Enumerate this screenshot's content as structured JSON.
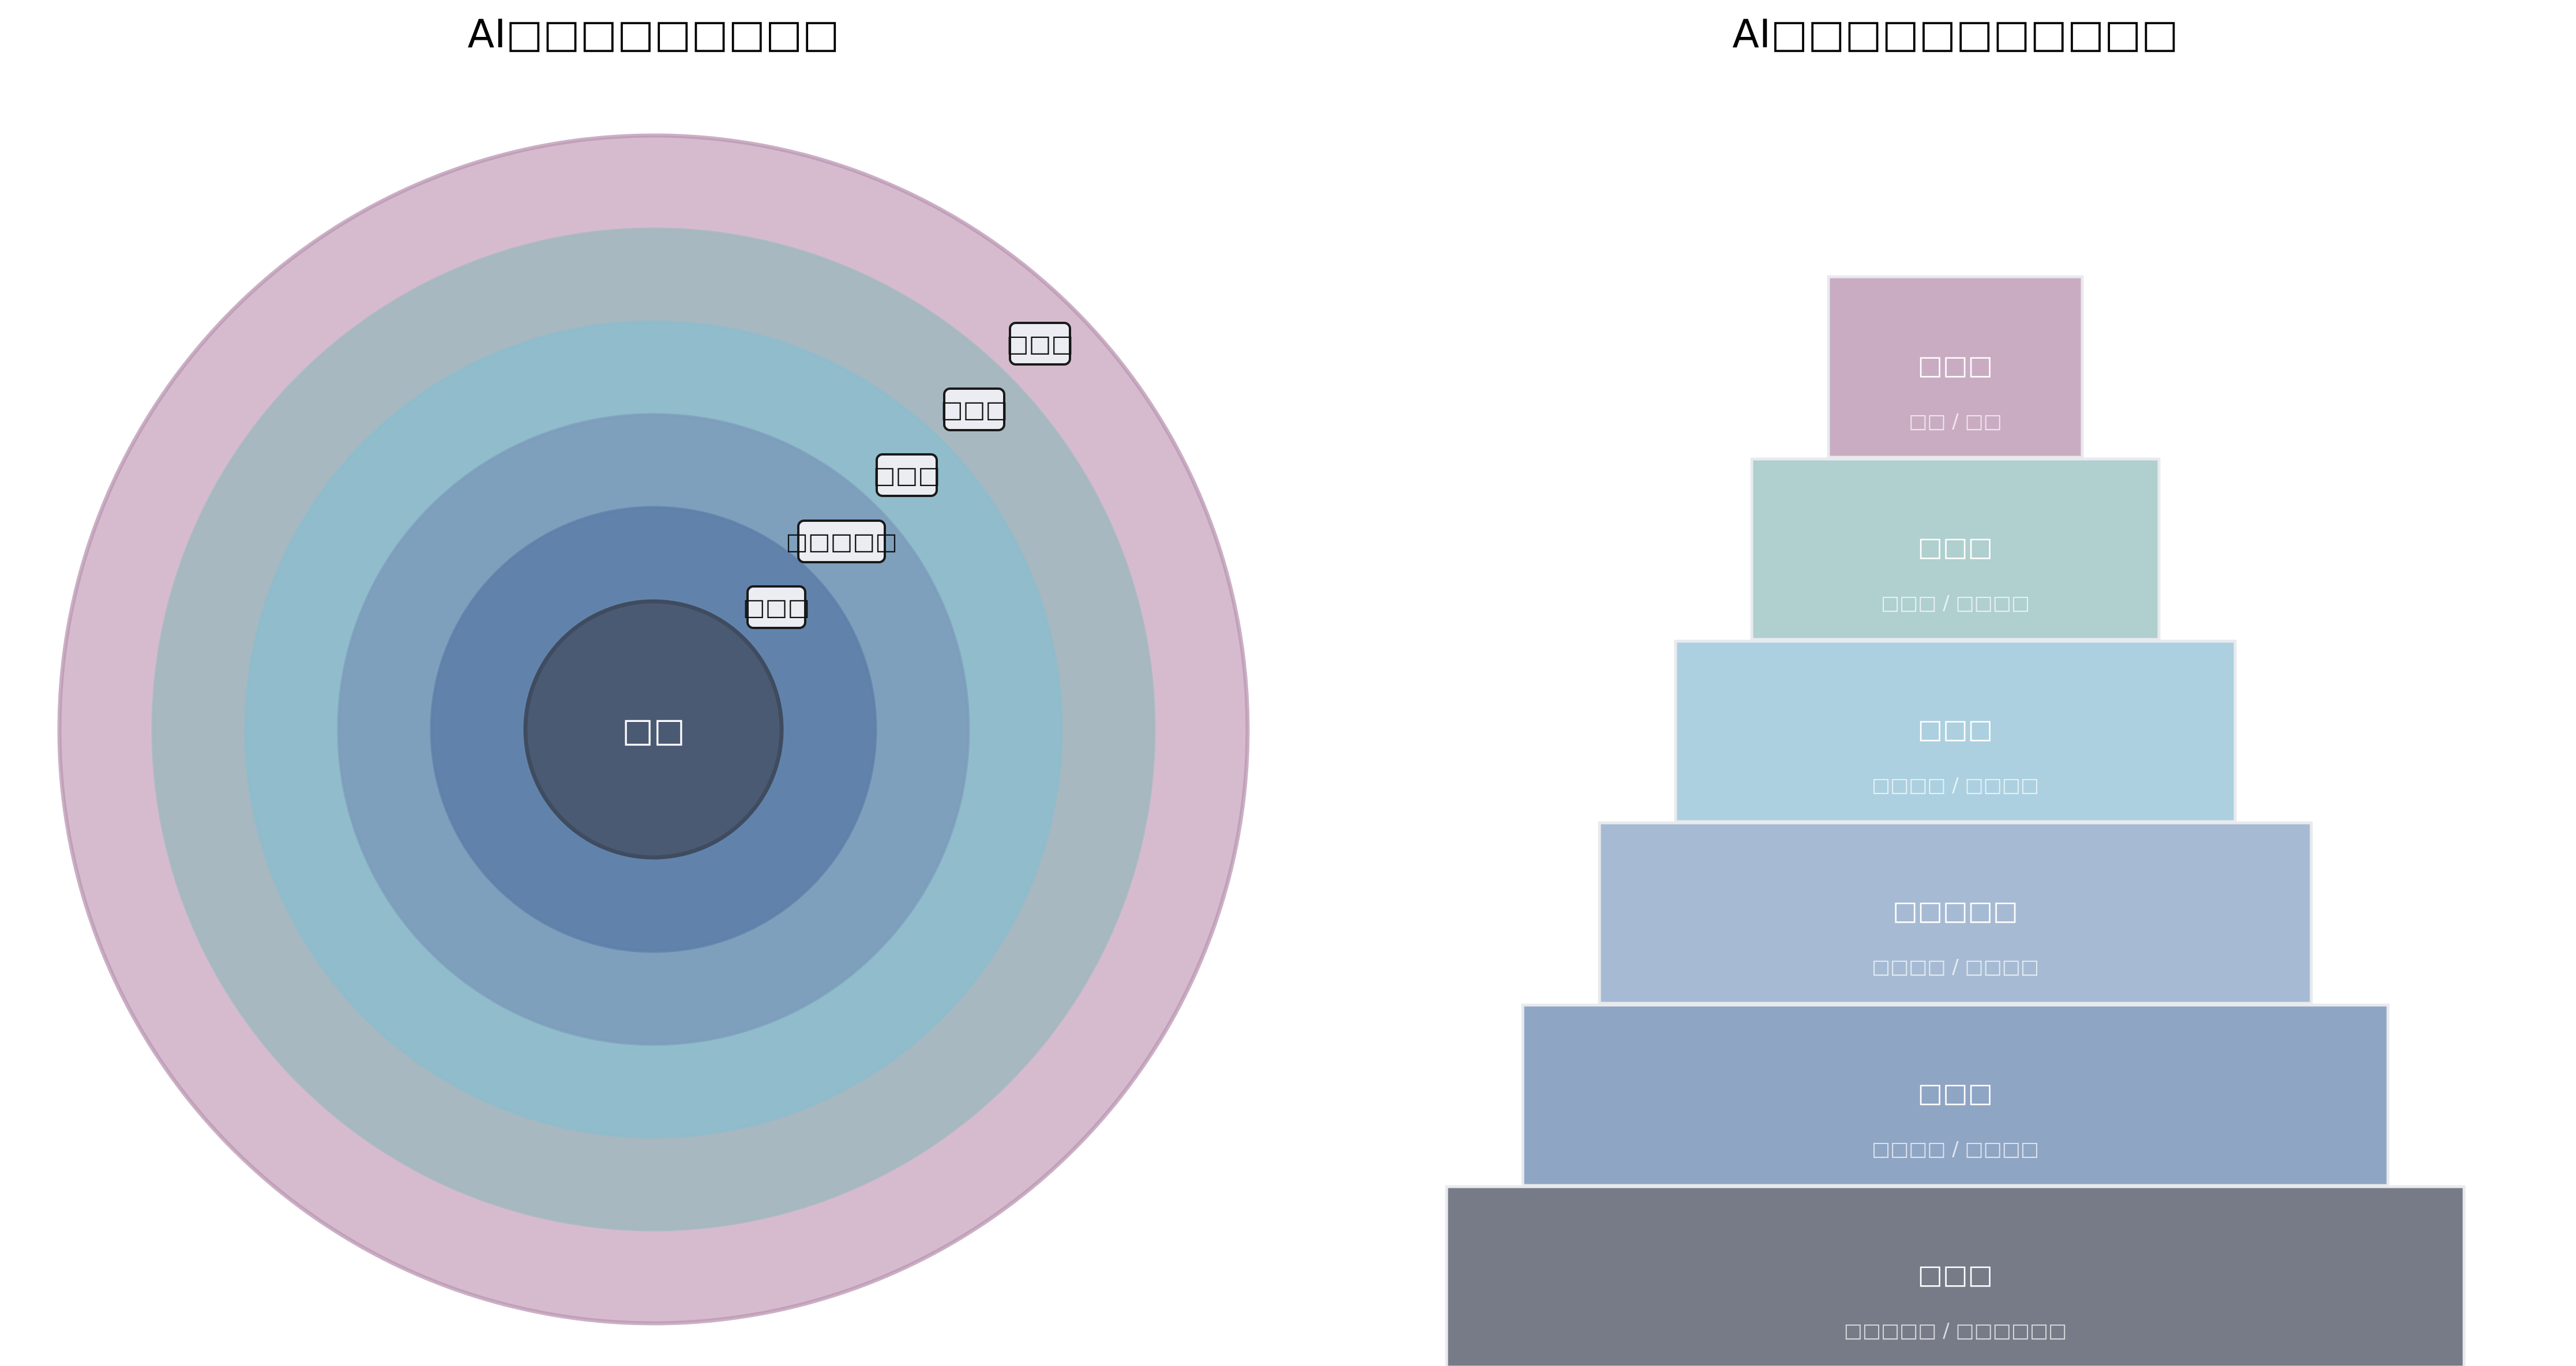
{
  "left_diagram": {
    "title": "AI□□□□□□□□□",
    "core": {
      "label": "□□",
      "color": "#4b5a73"
    },
    "rings": [
      {
        "label": "□□□",
        "color": "#5e7fa8"
      },
      {
        "label": "□□□□□",
        "color": "#7c9cbb"
      },
      {
        "label": "□□□",
        "color": "#8ebccc"
      },
      {
        "label": "□□□",
        "color": "#a2b8bf"
      },
      {
        "label": "□□□",
        "color": "#d1b4c9"
      }
    ]
  },
  "right_diagram": {
    "title": "AI□□□□□□□□□□□",
    "tiers": [
      {
        "name": "□□□",
        "sub": "□□ / □□",
        "color": "#c9acc2"
      },
      {
        "name": "□□□",
        "sub": "□□□ / □□□□",
        "color": "#b0cfcf"
      },
      {
        "name": "□□□",
        "sub": "□□□□ / □□□□",
        "color": "#acd0df"
      },
      {
        "name": "□□□□□",
        "sub": "□□□□ / □□□□",
        "color": "#a6bbd3"
      },
      {
        "name": "□□□",
        "sub": "□□□□ / □□□□",
        "color": "#8fa5c4"
      },
      {
        "name": "□□□",
        "sub": "□□□□□ / □□□□□□",
        "color": "#767b87"
      }
    ]
  }
}
